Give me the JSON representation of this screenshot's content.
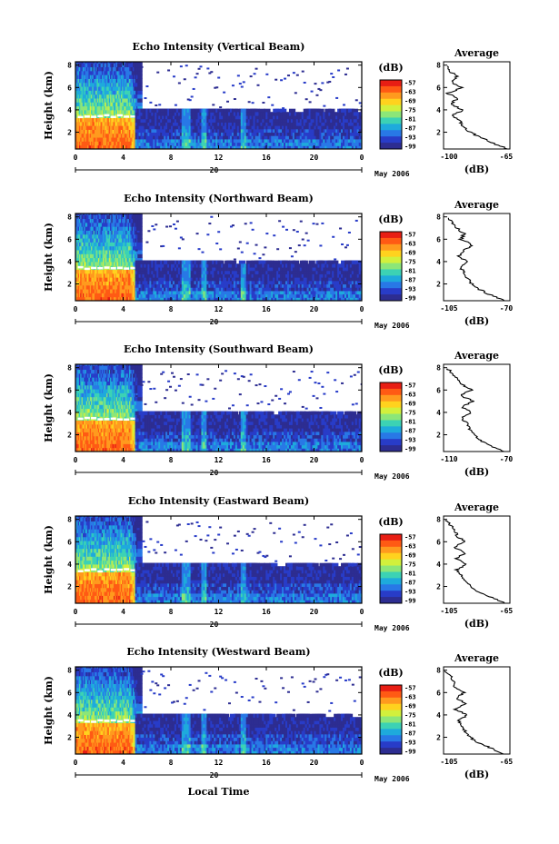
{
  "chart_data": {
    "type": "heatmap",
    "shared": {
      "xlabel": "Local Time",
      "x_ticks": [
        "0",
        "4",
        "8",
        "12",
        "16",
        "20",
        "0"
      ],
      "xlim": [
        0,
        24
      ],
      "date_tick": "20",
      "date_label": "May 2006",
      "ylabel": "Height (km)",
      "y_ticks": [
        "2",
        "4",
        "6",
        "8"
      ],
      "ylim": [
        0.5,
        8.3
      ],
      "colorbar": {
        "unit": "(dB)",
        "ticks": [
          "-57",
          "-63",
          "-69",
          "-75",
          "-81",
          "-87",
          "-93",
          "-99"
        ],
        "colors": [
          "#e81e14",
          "#ff5a14",
          "#ff9a1e",
          "#ffd21e",
          "#d2f03c",
          "#8ce678",
          "#3cd2b4",
          "#1eaadc",
          "#2878e6",
          "#283cc8",
          "#2d2d91"
        ]
      },
      "avg_title": "Average",
      "avg_xlabel": "(dB)",
      "avg_y_ticks": [
        "2",
        "4",
        "6",
        "8"
      ]
    },
    "panels": [
      {
        "title": "Echo Intensity (Vertical Beam)",
        "avg_x_ticks": [
          "-100",
          "-65"
        ],
        "avg_xlim": [
          -100,
          -65
        ],
        "avg_profile": {
          "height": [
            0.5,
            1.0,
            1.5,
            2.0,
            2.5,
            3.0,
            3.5,
            4.0,
            4.5,
            5.0,
            5.5,
            6.0,
            6.5,
            7.0,
            7.5,
            8.0
          ],
          "db": [
            -66,
            -74,
            -80,
            -86,
            -90,
            -91,
            -95,
            -90,
            -96,
            -93,
            -98,
            -90,
            -96,
            -93,
            -97,
            -99
          ]
        }
      },
      {
        "title": "Echo Intensity (Northward Beam)",
        "avg_x_ticks": [
          "-105",
          "-70"
        ],
        "avg_xlim": [
          -105,
          -70
        ],
        "avg_profile": {
          "height": [
            0.5,
            1.0,
            1.5,
            2.0,
            2.5,
            3.0,
            3.5,
            4.0,
            4.5,
            5.0,
            5.5,
            6.0,
            6.5,
            7.0,
            7.5,
            8.0
          ],
          "db": [
            -72,
            -80,
            -86,
            -90,
            -92,
            -94,
            -96,
            -93,
            -97,
            -94,
            -90,
            -96,
            -94,
            -98,
            -101,
            -103
          ]
        }
      },
      {
        "title": "Echo Intensity (Southward Beam)",
        "avg_x_ticks": [
          "-110",
          "-70"
        ],
        "avg_xlim": [
          -110,
          -70
        ],
        "avg_profile": {
          "height": [
            0.5,
            1.0,
            1.5,
            2.0,
            2.5,
            3.0,
            3.5,
            4.0,
            4.5,
            5.0,
            5.5,
            6.0,
            6.5,
            7.0,
            7.5,
            8.0
          ],
          "db": [
            -74,
            -82,
            -88,
            -92,
            -94,
            -96,
            -99,
            -93,
            -99,
            -92,
            -100,
            -93,
            -99,
            -102,
            -105,
            -108
          ]
        }
      },
      {
        "title": "Echo Intensity (Eastward Beam)",
        "avg_x_ticks": [
          "-105",
          "-65"
        ],
        "avg_xlim": [
          -105,
          -65
        ],
        "avg_profile": {
          "height": [
            0.5,
            1.0,
            1.5,
            2.0,
            2.5,
            3.0,
            3.5,
            4.0,
            4.5,
            5.0,
            5.5,
            6.0,
            6.5,
            7.0,
            7.5,
            8.0
          ],
          "db": [
            -68,
            -76,
            -84,
            -89,
            -92,
            -94,
            -97,
            -91,
            -98,
            -92,
            -99,
            -92,
            -97,
            -98,
            -101,
            -104
          ]
        }
      },
      {
        "title": "Echo Intensity (Westward Beam)",
        "avg_x_ticks": [
          "-105",
          "-65"
        ],
        "avg_xlim": [
          -105,
          -65
        ],
        "avg_profile": {
          "height": [
            0.5,
            1.0,
            1.5,
            2.0,
            2.5,
            3.0,
            3.5,
            4.0,
            4.5,
            5.0,
            5.5,
            6.0,
            6.5,
            7.0,
            7.5,
            8.0
          ],
          "db": [
            -68,
            -76,
            -84,
            -89,
            -92,
            -94,
            -96,
            -91,
            -98,
            -92,
            -97,
            -93,
            -98,
            -99,
            -101,
            -104
          ]
        }
      }
    ]
  }
}
